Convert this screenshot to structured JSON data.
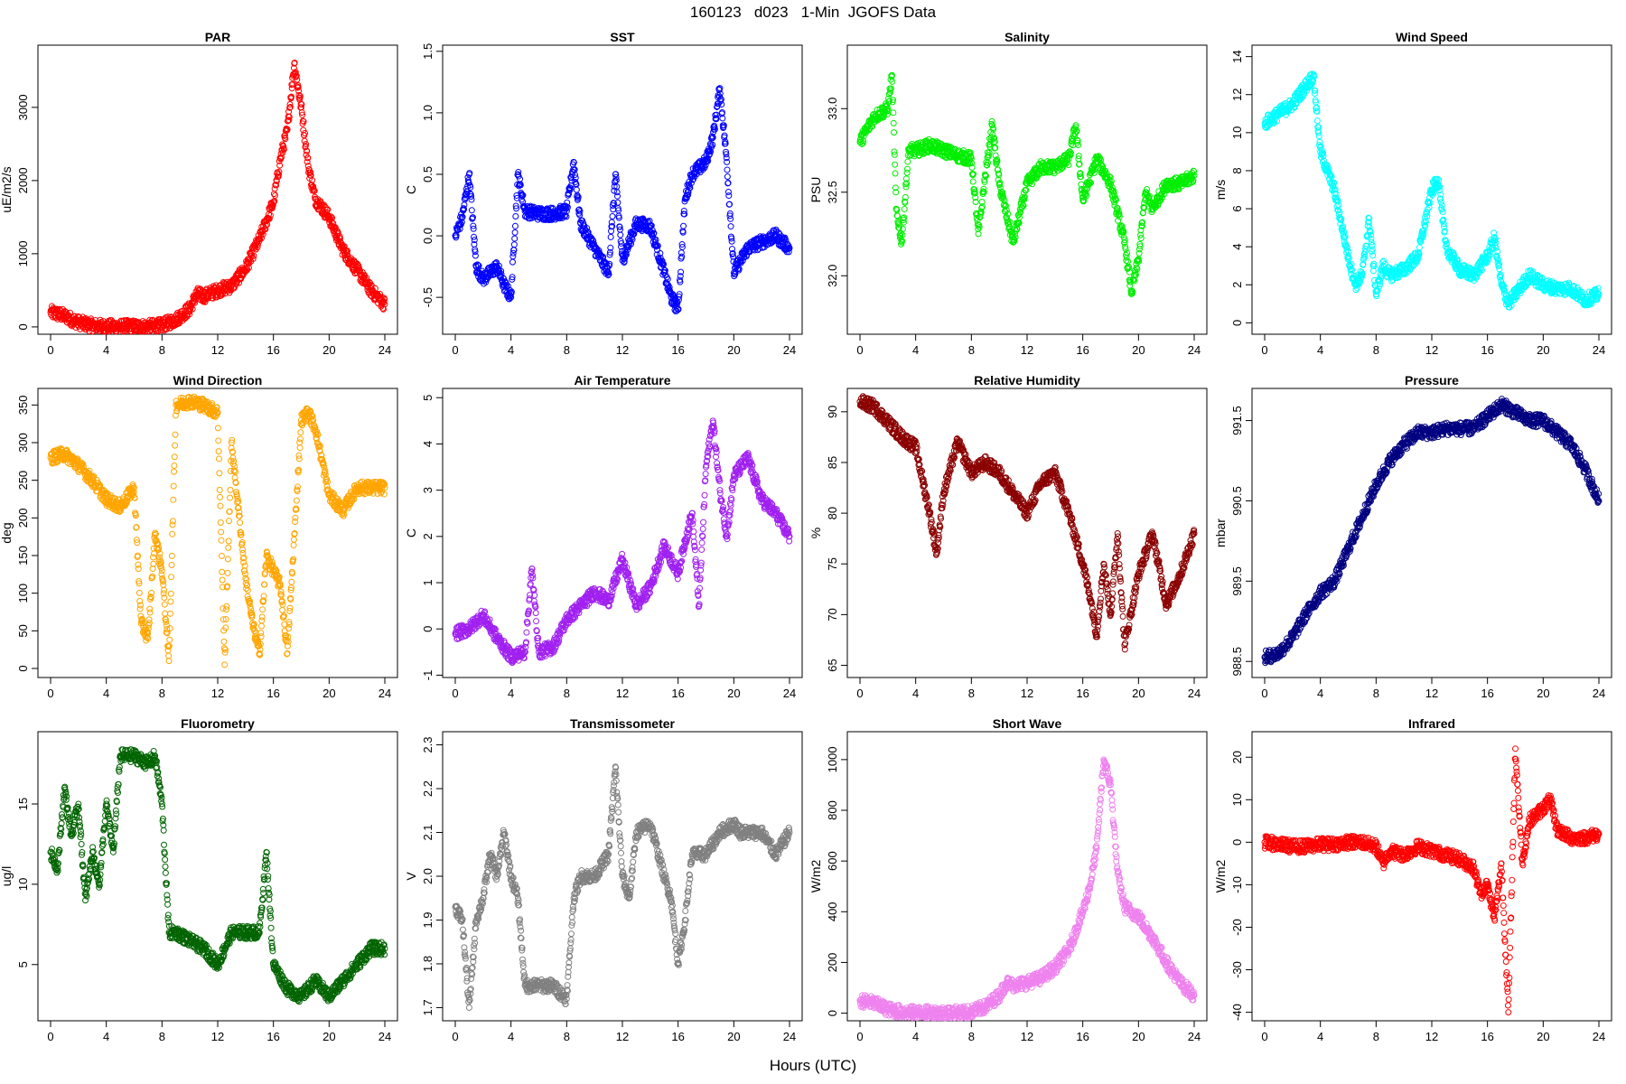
{
  "title": "160123   d023   1-Min  JGOFS Data",
  "x_axis_label": "Hours (UTC)",
  "chart_data": [
    {
      "type": "scatter",
      "title": "PAR",
      "ylabel": "uE/m2/s",
      "color": "#ff0000",
      "xlim": [
        0,
        24
      ],
      "xticks": [
        0,
        4,
        8,
        12,
        16,
        20,
        24
      ],
      "ylim": [
        -100,
        3850
      ],
      "yticks": [
        0,
        1000,
        2000,
        3000
      ],
      "x": [
        0,
        1,
        2,
        3,
        4,
        5,
        6,
        7,
        8,
        9,
        10,
        10.5,
        11,
        12,
        13,
        14,
        15,
        16,
        16.5,
        17,
        17.5,
        18,
        18.5,
        19,
        20,
        21,
        22,
        23,
        24
      ],
      "y": [
        200,
        150,
        60,
        20,
        5,
        5,
        5,
        5,
        20,
        100,
        250,
        450,
        420,
        500,
        560,
        800,
        1200,
        1700,
        2300,
        2700,
        3600,
        3000,
        2200,
        1750,
        1500,
        1050,
        780,
        500,
        310
      ]
    },
    {
      "type": "scatter",
      "title": "SST",
      "ylabel": "C",
      "color": "#0000ff",
      "xlim": [
        0,
        24
      ],
      "xticks": [
        0,
        4,
        8,
        12,
        16,
        20,
        24
      ],
      "ylim": [
        -0.8,
        1.55
      ],
      "yticks": [
        -0.5,
        0.0,
        0.5,
        1.0,
        1.5
      ],
      "ytick_labels": [
        "-0.5",
        "0.0",
        "0.5",
        "1.0",
        "1.5"
      ],
      "x": [
        0,
        0.5,
        1,
        1.5,
        2,
        3,
        3.5,
        4,
        4.5,
        5,
        6,
        7,
        8,
        8.5,
        9,
        10,
        11,
        11.5,
        12,
        13,
        14,
        15,
        15.5,
        16,
        16.5,
        17,
        18,
        18.5,
        19,
        19.5,
        20,
        21,
        22,
        23,
        24
      ],
      "y": [
        0.0,
        0.15,
        0.5,
        -0.25,
        -0.35,
        -0.25,
        -0.4,
        -0.5,
        0.5,
        0.2,
        0.18,
        0.18,
        0.2,
        0.6,
        0.1,
        -0.1,
        -0.3,
        0.5,
        -0.2,
        0.1,
        0.08,
        -0.3,
        -0.5,
        -0.6,
        0.3,
        0.5,
        0.6,
        0.8,
        1.2,
        0.6,
        -0.3,
        -0.1,
        -0.05,
        0.0,
        -0.1
      ]
    },
    {
      "type": "scatter",
      "title": "Salinity",
      "ylabel": "PSU",
      "color": "#00ee00",
      "xlim": [
        0,
        24
      ],
      "xticks": [
        0,
        4,
        8,
        12,
        16,
        20,
        24
      ],
      "ylim": [
        31.65,
        33.38
      ],
      "yticks": [
        32.0,
        32.5,
        33.0
      ],
      "ytick_labels": [
        "32.0",
        "32.5",
        "33.0"
      ],
      "x": [
        0,
        1,
        2,
        2.3,
        2.6,
        3,
        3.5,
        4,
        5,
        6,
        7,
        8,
        8.5,
        9,
        9.5,
        10,
        11,
        12,
        13,
        14,
        15,
        15.5,
        16,
        17,
        18,
        19,
        19.5,
        20,
        20.5,
        21,
        22,
        23,
        24
      ],
      "y": [
        32.8,
        32.95,
        33.0,
        33.2,
        32.4,
        32.2,
        32.75,
        32.75,
        32.78,
        32.75,
        32.72,
        32.7,
        32.25,
        32.6,
        32.9,
        32.55,
        32.2,
        32.55,
        32.65,
        32.65,
        32.7,
        32.9,
        32.45,
        32.7,
        32.55,
        32.2,
        31.9,
        32.1,
        32.5,
        32.4,
        32.55,
        32.55,
        32.6
      ]
    },
    {
      "type": "scatter",
      "title": "Wind Speed",
      "ylabel": "m/s",
      "color": "#00ffff",
      "xlim": [
        0,
        24
      ],
      "xticks": [
        0,
        4,
        8,
        12,
        16,
        20,
        24
      ],
      "ylim": [
        -0.6,
        14.6
      ],
      "yticks": [
        0,
        2,
        4,
        6,
        8,
        10,
        12,
        14
      ],
      "x": [
        0,
        1,
        2,
        3,
        3.5,
        4,
        5,
        6,
        6.5,
        7,
        7.5,
        8,
        8.5,
        9,
        10,
        11,
        12,
        12.5,
        13,
        14,
        15,
        16,
        16.5,
        17,
        17.5,
        18,
        19,
        20,
        21,
        22,
        23,
        24
      ],
      "y": [
        10.5,
        11.0,
        11.5,
        12.5,
        13.0,
        9.0,
        7.0,
        3.5,
        2.0,
        2.5,
        5.5,
        1.5,
        3.0,
        2.5,
        2.8,
        3.5,
        7.0,
        7.5,
        4.0,
        2.8,
        2.5,
        3.5,
        4.5,
        2.0,
        1.0,
        1.5,
        2.5,
        2.0,
        1.8,
        1.8,
        1.2,
        1.5
      ]
    },
    {
      "type": "scatter",
      "title": "Wind Direction",
      "ylabel": "deg",
      "color": "#ffa500",
      "xlim": [
        0,
        24
      ],
      "xticks": [
        0,
        4,
        8,
        12,
        16,
        20,
        24
      ],
      "ylim": [
        -12,
        372
      ],
      "yticks": [
        0,
        50,
        100,
        150,
        200,
        250,
        300,
        350
      ],
      "x": [
        0,
        1,
        2,
        3,
        4,
        5,
        6,
        6.5,
        7,
        7.5,
        8,
        8.5,
        9,
        10,
        11,
        12,
        12.5,
        13,
        14,
        14.5,
        15,
        15.5,
        16,
        16.5,
        17,
        18,
        18.5,
        19,
        20,
        21,
        22,
        23,
        24
      ],
      "y": [
        280,
        285,
        270,
        250,
        225,
        215,
        240,
        60,
        40,
        180,
        130,
        10,
        350,
        355,
        350,
        340,
        5,
        300,
        120,
        60,
        20,
        150,
        130,
        110,
        20,
        330,
        340,
        320,
        230,
        210,
        240,
        240,
        240
      ]
    },
    {
      "type": "scatter",
      "title": "Air Temperature",
      "ylabel": "C",
      "color": "#a020f0",
      "xlim": [
        0,
        24
      ],
      "xticks": [
        0,
        4,
        8,
        12,
        16,
        20,
        24
      ],
      "ylim": [
        -1.05,
        5.2
      ],
      "yticks": [
        -1,
        0,
        1,
        2,
        3,
        4,
        5
      ],
      "x": [
        0,
        1,
        2,
        3,
        4,
        5,
        5.5,
        6,
        7,
        8,
        9,
        10,
        11,
        12,
        13,
        14,
        15,
        16,
        16.5,
        17,
        17.5,
        18,
        18.5,
        19,
        19.5,
        20,
        21,
        22,
        23,
        24
      ],
      "y": [
        -0.1,
        0.0,
        0.3,
        -0.2,
        -0.6,
        -0.5,
        1.3,
        -0.5,
        -0.4,
        0.2,
        0.5,
        0.8,
        0.6,
        1.5,
        0.5,
        0.9,
        1.8,
        1.2,
        1.9,
        2.5,
        0.5,
        3.5,
        4.5,
        3.0,
        2.0,
        3.3,
        3.7,
        2.8,
        2.5,
        2.0
      ]
    },
    {
      "type": "scatter",
      "title": "Relative Humidity",
      "ylabel": "%",
      "color": "#8b0000",
      "xlim": [
        0,
        24
      ],
      "xticks": [
        0,
        4,
        8,
        12,
        16,
        20,
        24
      ],
      "ylim": [
        63.8,
        92.3
      ],
      "yticks": [
        65,
        70,
        75,
        80,
        85,
        90
      ],
      "x": [
        0,
        1,
        2,
        3,
        4,
        5,
        5.5,
        6,
        7,
        8,
        9,
        10,
        11,
        12,
        13,
        14,
        15,
        16,
        16.5,
        17,
        17.5,
        18,
        18.5,
        19,
        20,
        21,
        22,
        23,
        24
      ],
      "y": [
        91,
        90.5,
        89,
        87.5,
        86.5,
        80,
        76,
        82,
        87,
        84,
        85,
        84,
        82,
        80,
        83,
        84,
        80,
        75,
        72,
        68,
        75,
        70,
        78,
        67,
        74,
        78,
        71,
        74,
        78
      ]
    },
    {
      "type": "scatter",
      "title": "Pressure",
      "ylabel": "mbar",
      "color": "#000080",
      "xlim": [
        0,
        24
      ],
      "xticks": [
        0,
        4,
        8,
        12,
        16,
        20,
        24
      ],
      "ylim": [
        988.3,
        991.9
      ],
      "yticks": [
        988.5,
        989.5,
        990.5,
        991.5
      ],
      "ytick_labels": [
        "988.5",
        "989.5",
        "990.5",
        "991.5"
      ],
      "x": [
        0,
        1,
        2,
        3,
        4,
        5,
        6,
        7,
        8,
        9,
        10,
        11,
        12,
        13,
        14,
        15,
        16,
        17,
        18,
        19,
        20,
        21,
        22,
        23,
        24
      ],
      "y": [
        988.55,
        988.6,
        988.8,
        989.1,
        989.35,
        989.5,
        989.9,
        990.3,
        990.7,
        991.0,
        991.2,
        991.35,
        991.35,
        991.4,
        991.4,
        991.4,
        991.55,
        991.7,
        991.6,
        991.5,
        991.5,
        991.35,
        991.2,
        990.9,
        990.5
      ]
    },
    {
      "type": "scatter",
      "title": "Fluorometry",
      "ylabel": "ug/l",
      "color": "#006400",
      "xlim": [
        0,
        24
      ],
      "xticks": [
        0,
        4,
        8,
        12,
        16,
        20,
        24
      ],
      "ylim": [
        1.5,
        19.5
      ],
      "yticks": [
        5,
        10,
        15
      ],
      "x": [
        0,
        0.5,
        1,
        1.5,
        2,
        2.5,
        3,
        3.5,
        4,
        4.5,
        5,
        6,
        7,
        7.5,
        8,
        8.5,
        9,
        10,
        11,
        12,
        13,
        14,
        15,
        15.5,
        16,
        17,
        18,
        19,
        20,
        21,
        22,
        23,
        24
      ],
      "y": [
        12,
        11,
        16,
        13,
        15,
        9,
        12,
        10,
        15,
        12,
        18,
        18,
        17.5,
        18,
        15,
        7,
        7,
        6.5,
        6,
        5,
        7,
        7,
        7,
        12,
        5,
        3.5,
        3,
        4,
        3,
        4,
        5,
        6,
        6
      ]
    },
    {
      "type": "scatter",
      "title": "Transmissometer",
      "ylabel": "V",
      "color": "#808080",
      "xlim": [
        0,
        24
      ],
      "xticks": [
        0,
        4,
        8,
        12,
        16,
        20,
        24
      ],
      "ylim": [
        1.67,
        2.33
      ],
      "yticks": [
        1.7,
        1.8,
        1.9,
        2.0,
        2.1,
        2.2,
        2.3
      ],
      "ytick_labels": [
        "1.7",
        "1.8",
        "1.9",
        "2.0",
        "2.1",
        "2.2",
        "2.3"
      ],
      "x": [
        0,
        0.5,
        1,
        1.5,
        2,
        2.5,
        3,
        3.5,
        4,
        4.5,
        5,
        6,
        7,
        8,
        8.5,
        9,
        10,
        11,
        11.5,
        12,
        12.5,
        13,
        14,
        15,
        15.5,
        16,
        16.5,
        17,
        18,
        19,
        20,
        20.5,
        21,
        22,
        23,
        24
      ],
      "y": [
        1.93,
        1.9,
        1.7,
        1.9,
        1.95,
        2.05,
        2.0,
        2.1,
        2.0,
        1.95,
        1.75,
        1.75,
        1.75,
        1.72,
        1.95,
        2.0,
        2.0,
        2.05,
        2.25,
        2.0,
        1.95,
        2.1,
        2.12,
        2.0,
        1.95,
        1.8,
        1.9,
        2.05,
        2.05,
        2.1,
        2.12,
        2.1,
        2.1,
        2.1,
        2.05,
        2.1
      ]
    },
    {
      "type": "scatter",
      "title": "Short Wave",
      "ylabel": "W/m2",
      "color": "#ee82ee",
      "xlim": [
        0,
        24
      ],
      "xticks": [
        0,
        4,
        8,
        12,
        16,
        20,
        24
      ],
      "ylim": [
        -30,
        1110
      ],
      "yticks": [
        0,
        200,
        400,
        600,
        800,
        1000
      ],
      "x": [
        0,
        1,
        2,
        3,
        4,
        5,
        6,
        7,
        8,
        9,
        10,
        10.5,
        11,
        12,
        13,
        14,
        15,
        16,
        16.5,
        17,
        17.5,
        18,
        18.5,
        19,
        20,
        21,
        22,
        23,
        24
      ],
      "y": [
        50,
        40,
        15,
        5,
        2,
        2,
        2,
        2,
        5,
        25,
        70,
        120,
        110,
        120,
        140,
        180,
        250,
        400,
        500,
        650,
        1000,
        900,
        550,
        420,
        380,
        300,
        200,
        120,
        70
      ]
    },
    {
      "type": "scatter",
      "title": "Infrared",
      "ylabel": "W/m2",
      "color": "#ff0000",
      "xlim": [
        0,
        24
      ],
      "xticks": [
        0,
        4,
        8,
        12,
        16,
        20,
        24
      ],
      "ylim": [
        -42,
        26
      ],
      "yticks": [
        -40,
        -30,
        -20,
        -10,
        0,
        10,
        20
      ],
      "x": [
        0,
        1,
        2,
        3,
        4,
        5,
        6,
        7,
        8,
        8.5,
        9,
        10,
        11,
        12,
        13,
        14,
        15,
        15.5,
        16,
        16.5,
        17,
        17.5,
        18,
        18.5,
        19,
        20,
        20.5,
        21,
        22,
        23,
        24
      ],
      "y": [
        0,
        -0.5,
        -1,
        -1,
        -0.5,
        -0.5,
        0,
        0,
        -1,
        -5,
        -2,
        -3,
        -1,
        -2,
        -3,
        -4,
        -6,
        -12,
        -10,
        -18,
        -5,
        -40,
        22,
        -5,
        5,
        8,
        10,
        3,
        1,
        1,
        2
      ]
    }
  ]
}
